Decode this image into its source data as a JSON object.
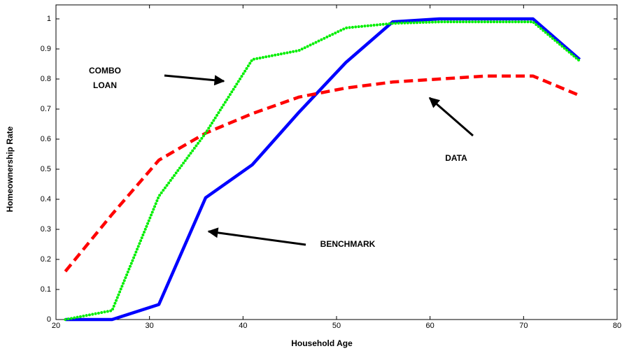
{
  "chart_data": {
    "type": "line",
    "xlabel": "Household Age",
    "ylabel": "Homeownership Rate",
    "x": [
      21,
      26,
      31,
      36,
      41,
      46,
      51,
      56,
      61,
      66,
      71,
      76
    ],
    "series": [
      {
        "name": "BENCHMARK",
        "color": "#0000ff",
        "style": "solid",
        "values": [
          0,
          0,
          0.05,
          0.405,
          0.515,
          0.69,
          0.855,
          0.99,
          1.0,
          1.0,
          1.0,
          0.865
        ]
      },
      {
        "name": "DATA",
        "color": "#ff0000",
        "style": "dashed",
        "values": [
          0.16,
          0.35,
          0.53,
          0.62,
          0.685,
          0.74,
          0.77,
          0.79,
          0.8,
          0.81,
          0.81,
          0.745
        ]
      },
      {
        "name": "COMBO LOAN",
        "color": "#00ee00",
        "style": "dotted",
        "values": [
          0,
          0.03,
          0.41,
          0.62,
          0.865,
          0.895,
          0.97,
          0.985,
          0.99,
          0.99,
          0.99,
          0.86
        ]
      }
    ],
    "annotations": [
      {
        "lines": [
          "COMBO",
          "LOAN"
        ]
      },
      {
        "lines": [
          "DATA"
        ]
      },
      {
        "lines": [
          "BENCHMARK"
        ]
      }
    ],
    "xlim": [
      20,
      80
    ],
    "ylim": [
      0,
      1
    ],
    "xticks": [
      20,
      30,
      40,
      50,
      60,
      70,
      80
    ],
    "yticks": [
      0,
      0.1,
      0.2,
      0.3,
      0.4,
      0.5,
      0.6,
      0.7,
      0.8,
      0.9,
      1
    ],
    "grid": false
  }
}
